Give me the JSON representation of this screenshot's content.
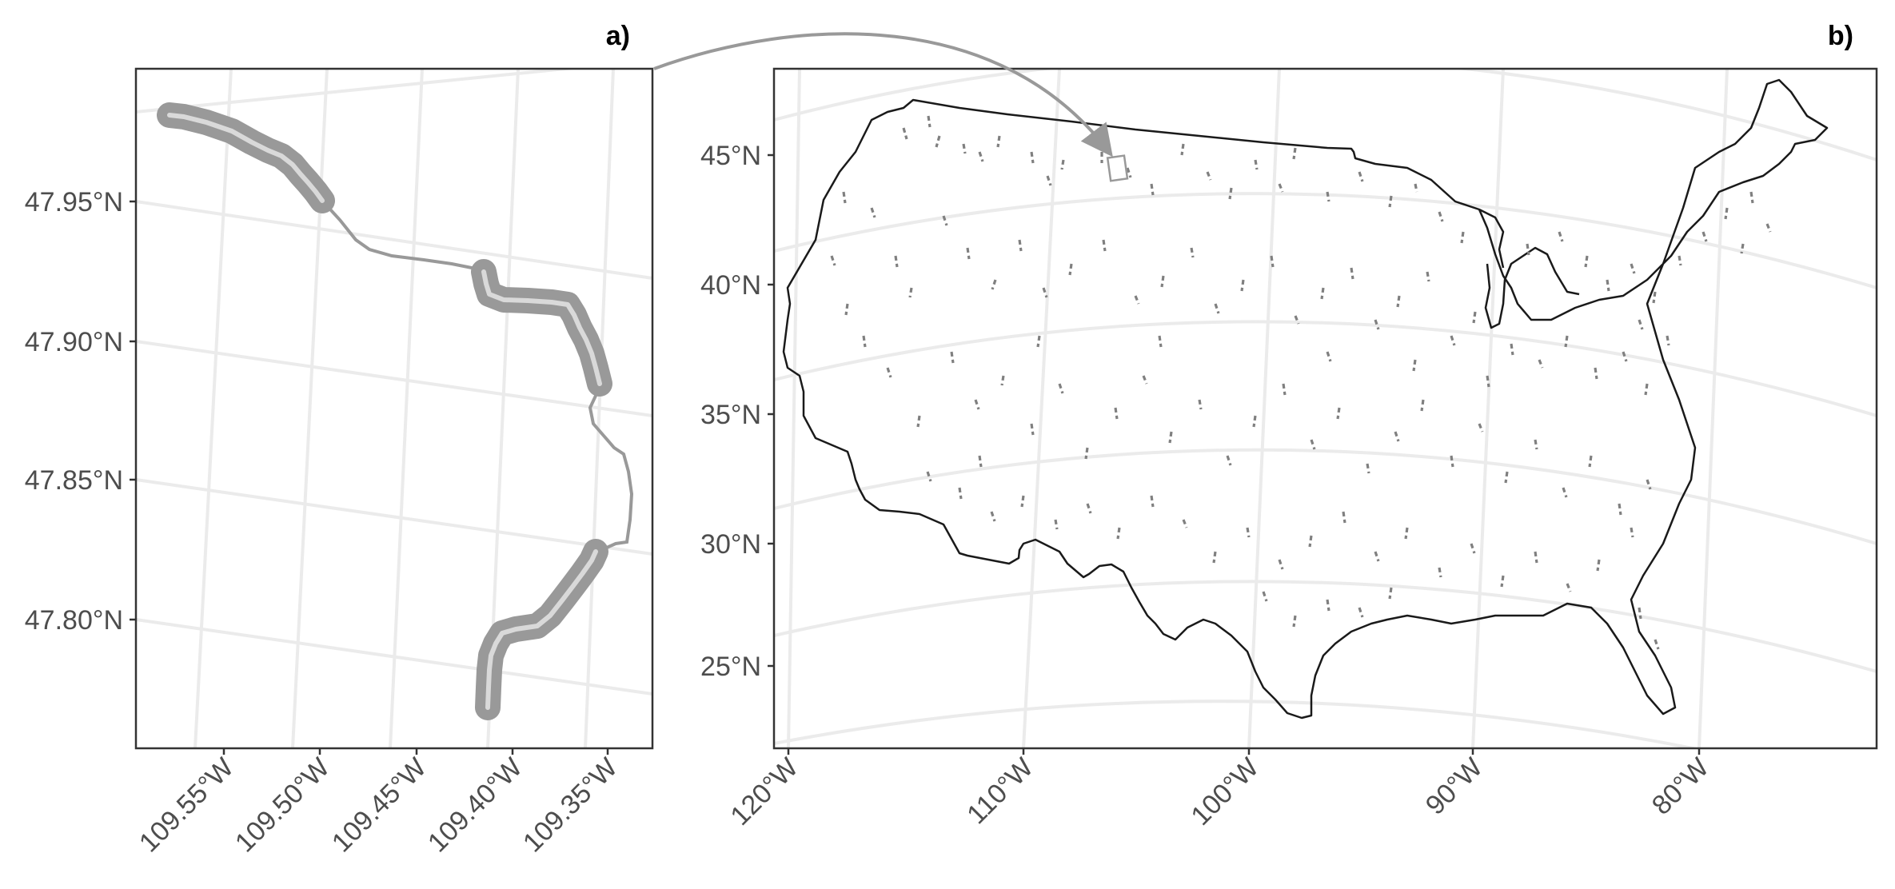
{
  "panels": {
    "a": {
      "label": "a)",
      "y_ticks": [
        "47.95°N",
        "47.90°N",
        "47.85°N",
        "47.80°N"
      ],
      "x_ticks": [
        "109.55°W",
        "109.50°W",
        "109.45°W",
        "109.40°W",
        "109.35°W"
      ]
    },
    "b": {
      "label": "b)",
      "y_ticks": [
        "45°N",
        "40°N",
        "35°N",
        "30°N",
        "25°N"
      ],
      "x_ticks": [
        "120°W",
        "110°W",
        "100°W",
        "90°W",
        "80°W"
      ]
    }
  },
  "colors": {
    "river_highlight": "#999999",
    "river_core": "#d9d9d9",
    "river_line": "#999999",
    "segments": "#808080",
    "outline": "#1a1a1a",
    "graticule": "#ebebeb",
    "connector": "#999999"
  }
}
